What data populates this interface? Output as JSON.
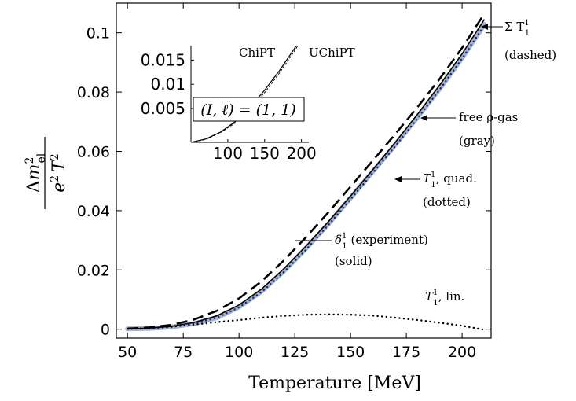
{
  "chart_data": [
    {
      "type": "line",
      "xlabel": "Temperature [MeV]",
      "ylabel": "Δm²_el / e² T²",
      "xlim": [
        45,
        213
      ],
      "ylim": [
        -0.003,
        0.11
      ],
      "x_ticks": [
        50,
        75,
        100,
        125,
        150,
        175,
        200
      ],
      "y_ticks": [
        0,
        0.02,
        0.04,
        0.06,
        0.08,
        0.1
      ],
      "x_tick_labels": [
        "50",
        "75",
        "100",
        "125",
        "150",
        "175",
        "200"
      ],
      "y_tick_labels": [
        "0",
        "0.02",
        "0.04",
        "0.06",
        "0.08",
        "0.1"
      ],
      "grid": false,
      "x": [
        50,
        60,
        70,
        80,
        90,
        100,
        110,
        120,
        130,
        140,
        150,
        160,
        170,
        180,
        190,
        200,
        210
      ],
      "series": [
        {
          "id": "free-rho-gas",
          "style": "gray",
          "color": "#a3b2cf",
          "values": [
            0.0001,
            0.0003,
            0.0008,
            0.0019,
            0.0039,
            0.0075,
            0.0127,
            0.0195,
            0.0272,
            0.0355,
            0.0443,
            0.0532,
            0.0622,
            0.0715,
            0.0812,
            0.0915,
            0.1028
          ]
        },
        {
          "id": "delta-experiment",
          "style": "solid",
          "color": "#000000",
          "values": [
            0.0001,
            0.0004,
            0.001,
            0.0023,
            0.0045,
            0.0082,
            0.0135,
            0.0203,
            0.028,
            0.0362,
            0.0449,
            0.0538,
            0.063,
            0.0725,
            0.0824,
            0.0929,
            0.1045
          ]
        },
        {
          "id": "sum-T",
          "style": "dashed",
          "color": "#000000",
          "values": [
            0.0002,
            0.0006,
            0.0015,
            0.0033,
            0.0062,
            0.0104,
            0.0161,
            0.0231,
            0.031,
            0.0394,
            0.0481,
            0.0569,
            0.0658,
            0.0749,
            0.0845,
            0.0949,
            0.1065
          ]
        },
        {
          "id": "T-quad",
          "style": "dotted",
          "color": "#1a2a70",
          "values": [
            0.0001,
            0.0003,
            0.0008,
            0.0019,
            0.0039,
            0.0074,
            0.0125,
            0.0192,
            0.0268,
            0.0351,
            0.0438,
            0.0527,
            0.0617,
            0.0711,
            0.0809,
            0.0913,
            0.1025
          ]
        },
        {
          "id": "T-lin",
          "style": "dotted",
          "color": "#000000",
          "values": [
            0.0001,
            0.0004,
            0.0009,
            0.0016,
            0.0024,
            0.0031,
            0.0039,
            0.0045,
            0.0049,
            0.005,
            0.0049,
            0.0046,
            0.0039,
            0.0031,
            0.0022,
            0.0012,
            -0.0002
          ]
        }
      ],
      "annotations": [
        {
          "id": "sum-T",
          "main": "Σ T",
          "sub": "1",
          "sup": "1",
          "line2": "(dashed)"
        },
        {
          "id": "free-rho",
          "main": "free ρ-gas",
          "line2": "(gray)"
        },
        {
          "id": "T-quad",
          "main": "T",
          "sub": "1",
          "sup": "1",
          "tail": ", quad.",
          "line2": "(dotted)"
        },
        {
          "id": "delta",
          "main": "δ",
          "sub": "1",
          "sup": "1",
          "tail": " (experiment)",
          "line2": "(solid)"
        },
        {
          "id": "T-lin",
          "main": "T",
          "sub": "1",
          "sup": "1",
          "tail": ", lin."
        }
      ]
    },
    {
      "type": "line",
      "inset": true,
      "xlim": [
        50,
        210
      ],
      "ylim": [
        -0.002,
        0.018
      ],
      "x_ticks": [
        100,
        150,
        200
      ],
      "y_ticks": [
        0.005,
        0.01,
        0.015
      ],
      "x_tick_labels": [
        "100",
        "150",
        "200"
      ],
      "y_tick_labels": [
        "0.005",
        "0.01",
        "0.015"
      ],
      "box_label": "(I, ℓ) = (1, 1)",
      "x": [
        50,
        70,
        90,
        110,
        130,
        150,
        170,
        190,
        210
      ],
      "series": [
        {
          "name": "ChiPT",
          "style": "solid",
          "color": "#000000",
          "values": [
            -0.002,
            -0.0013,
            0.0001,
            0.0023,
            0.0052,
            0.0088,
            0.0128,
            0.0173,
            0.022
          ]
        },
        {
          "name": "UChiPT",
          "style": "dashed",
          "color": "#000000",
          "values": [
            -0.002,
            -0.0014,
            0.0,
            0.002,
            0.0048,
            0.0083,
            0.0123,
            0.0168,
            0.0214
          ]
        }
      ]
    }
  ]
}
